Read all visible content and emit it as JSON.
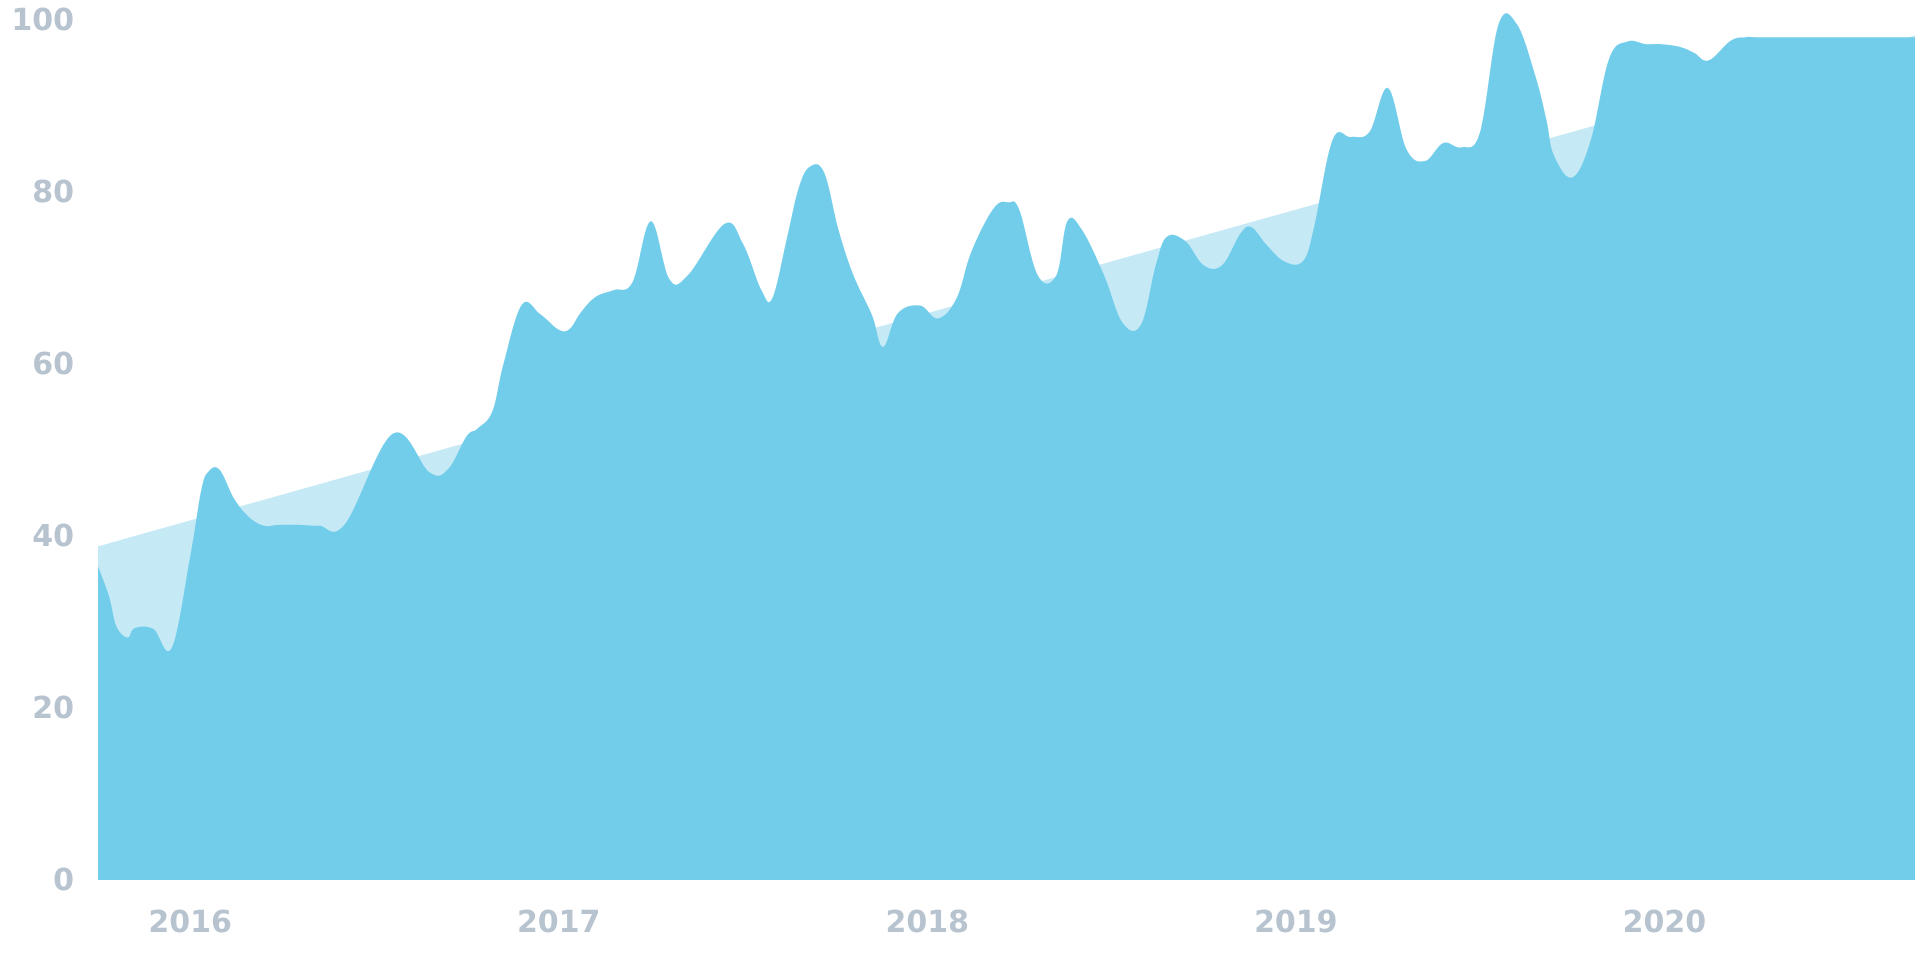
{
  "chart_data": {
    "type": "area",
    "title": "",
    "xlabel": "",
    "ylabel": "",
    "xlim": [
      2015.75,
      2020.68
    ],
    "ylim": [
      0,
      100
    ],
    "grid": false,
    "y_ticks": [
      0,
      20,
      40,
      60,
      80,
      100
    ],
    "x_ticks": [
      2016,
      2017,
      2018,
      2019,
      2020
    ],
    "colors": {
      "area": "#72cdea",
      "trend": "#c6e9f6",
      "tick_text": "#b7c4d0"
    },
    "series": [
      {
        "kind": "trend-area",
        "x": [
          2015.75,
          2020.68
        ],
        "y": [
          38.8,
          98.2
        ]
      },
      {
        "kind": "area",
        "x": [
          2015.75,
          2015.78,
          2015.8,
          2015.83,
          2015.85,
          2015.9,
          2015.95,
          2016.0,
          2016.03,
          2016.05,
          2016.08,
          2016.12,
          2016.16,
          2016.2,
          2016.24,
          2016.3,
          2016.35,
          2016.42,
          2016.55,
          2016.65,
          2016.7,
          2016.75,
          2016.78,
          2016.82,
          2016.85,
          2016.9,
          2016.95,
          2017.0,
          2017.03,
          2017.06,
          2017.1,
          2017.15,
          2017.2,
          2017.25,
          2017.3,
          2017.35,
          2017.45,
          2017.5,
          2017.55,
          2017.58,
          2017.62,
          2017.65,
          2017.68,
          2017.72,
          2017.76,
          2017.8,
          2017.85,
          2017.88,
          2017.92,
          2017.98,
          2018.03,
          2018.08,
          2018.12,
          2018.18,
          2018.22,
          2018.25,
          2018.3,
          2018.35,
          2018.38,
          2018.42,
          2018.48,
          2018.53,
          2018.58,
          2018.62,
          2018.65,
          2018.7,
          2018.75,
          2018.8,
          2018.85,
          2018.88,
          2018.92,
          2018.97,
          2019.02,
          2019.05,
          2019.1,
          2019.15,
          2019.2,
          2019.25,
          2019.3,
          2019.35,
          2019.4,
          2019.45,
          2019.5,
          2019.55,
          2019.6,
          2019.65,
          2019.68,
          2019.7,
          2019.75,
          2019.8,
          2019.85,
          2019.9,
          2019.95,
          2019.99,
          2020.04,
          2020.08,
          2020.12,
          2020.18,
          2020.22,
          2020.25,
          2020.32,
          2020.36,
          2020.4,
          2020.45,
          2020.5,
          2020.55,
          2020.6,
          2020.65,
          2020.68
        ],
        "y": [
          36.5,
          33,
          29.5,
          28.2,
          29.3,
          29.2,
          27,
          37.6,
          45.3,
          47.5,
          47.7,
          44.3,
          42.2,
          41.2,
          41.3,
          41.3,
          41.2,
          41.4,
          51.9,
          47.4,
          47.8,
          51.6,
          52.5,
          54.5,
          60,
          66.9,
          65.8,
          64,
          64.1,
          66,
          67.8,
          68.6,
          69.5,
          76.6,
          69.9,
          70.3,
          76.3,
          74,
          68.6,
          67.7,
          74.8,
          80.3,
          82.9,
          82.3,
          75.5,
          70.3,
          65.7,
          62,
          65.9,
          66.8,
          65.3,
          67.7,
          73.1,
          78.1,
          78.8,
          77.9,
          70.3,
          70.3,
          76.6,
          75.6,
          70.3,
          64.8,
          64.6,
          71.5,
          74.8,
          74.3,
          71.5,
          71.5,
          75.2,
          75.9,
          73.9,
          71.9,
          72,
          76,
          86.1,
          86.4,
          87,
          92.1,
          85,
          83.6,
          85.7,
          85.2,
          87,
          99.5,
          99.5,
          93.5,
          88.4,
          84.3,
          81.7,
          86,
          95.5,
          97.5,
          97.2,
          97.2,
          96.9,
          96.2,
          95.3,
          97.6,
          98,
          98,
          98,
          98,
          98,
          98,
          98,
          98,
          98,
          98,
          98
        ]
      }
    ]
  }
}
